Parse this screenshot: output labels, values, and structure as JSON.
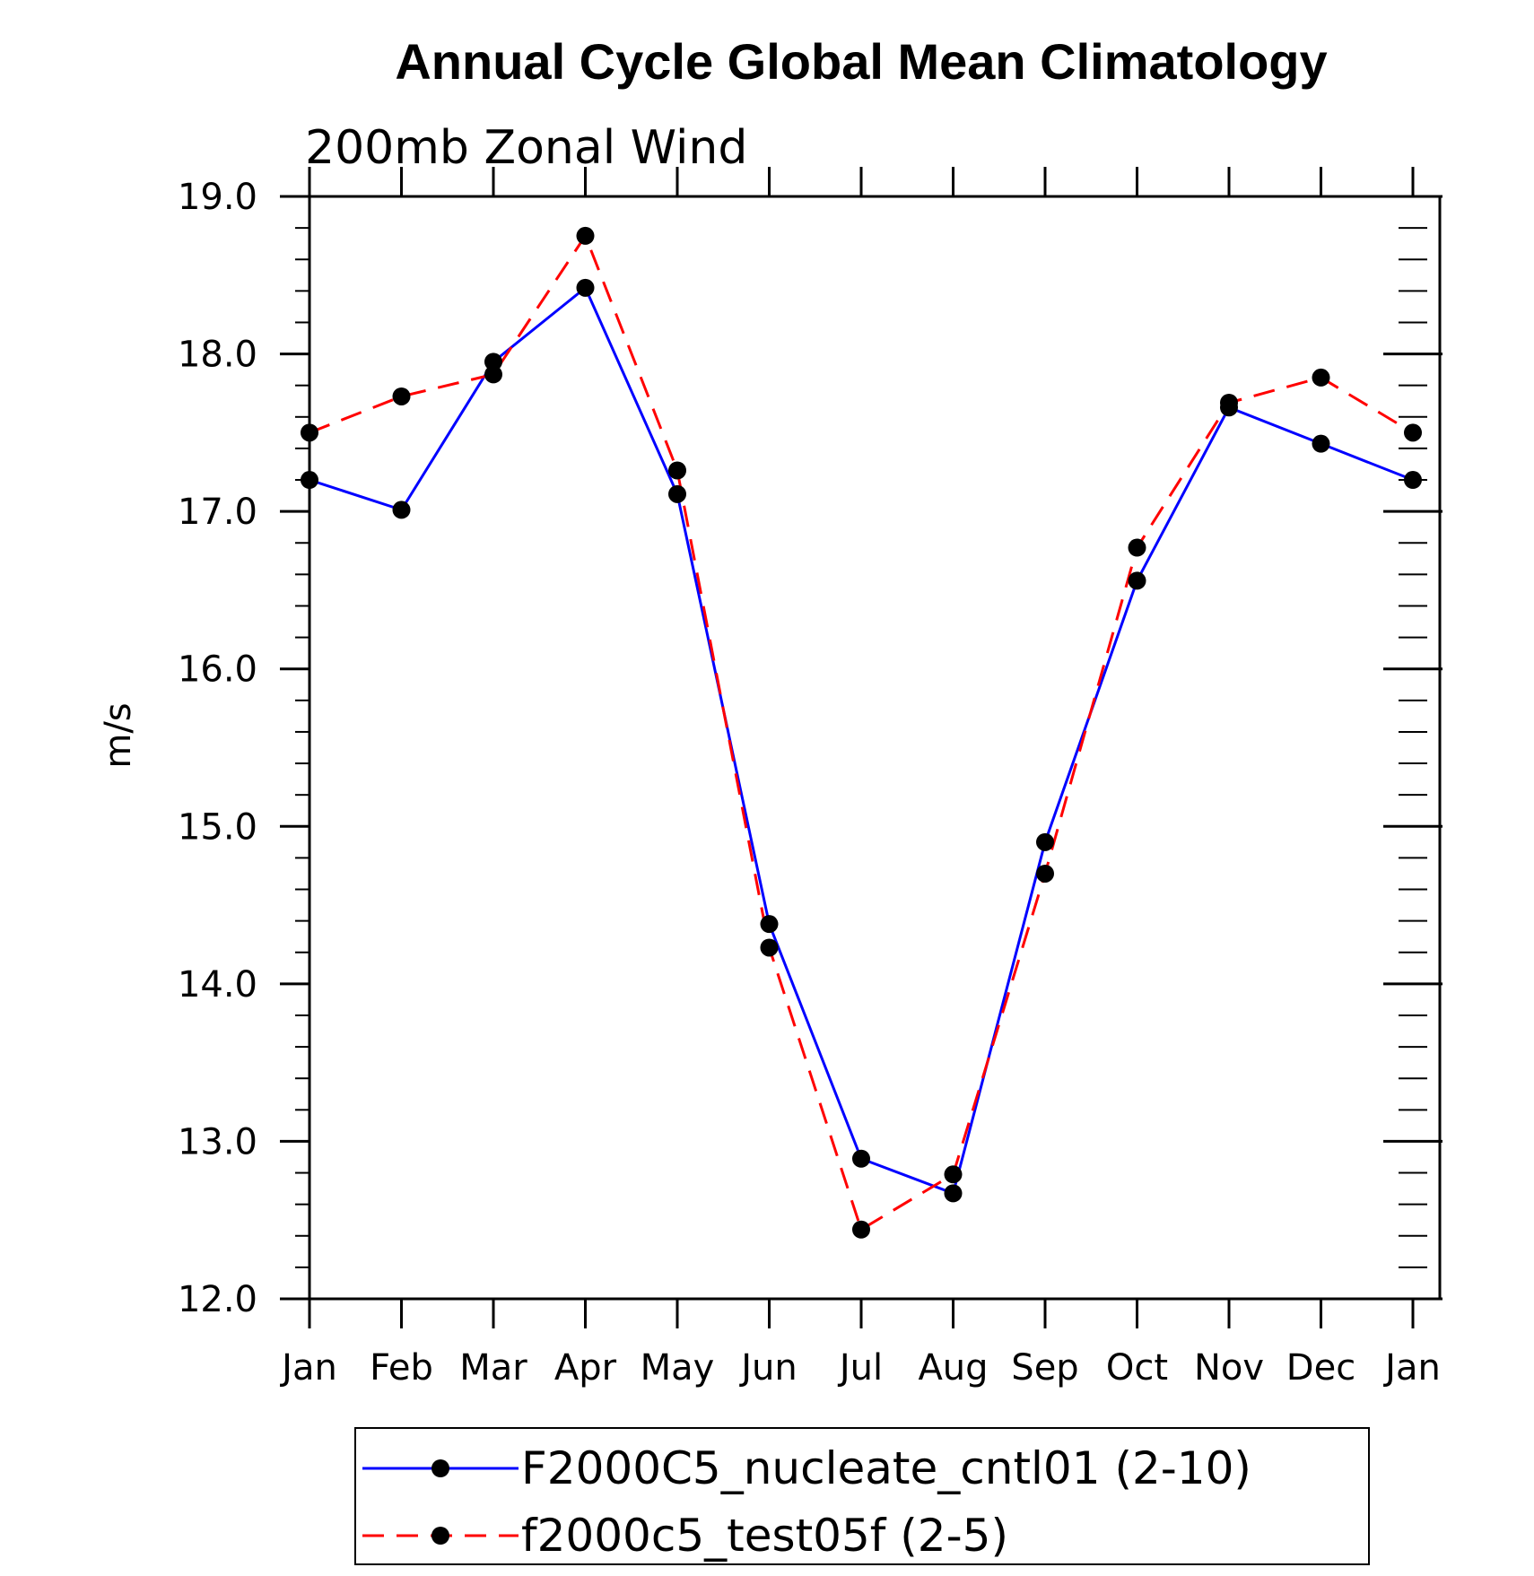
{
  "chart_data": {
    "type": "line",
    "title": "Annual Cycle Global Mean Climatology",
    "subtitle": "200mb Zonal Wind",
    "ylabel": "m/s",
    "xlabel": "",
    "categories": [
      "Jan",
      "Feb",
      "Mar",
      "Apr",
      "May",
      "Jun",
      "Jul",
      "Aug",
      "Sep",
      "Oct",
      "Nov",
      "Dec",
      "Jan"
    ],
    "ylim": [
      12.0,
      19.0
    ],
    "yticks": [
      "12.0",
      "13.0",
      "14.0",
      "15.0",
      "16.0",
      "17.0",
      "18.0",
      "19.0"
    ],
    "grid": false,
    "legend_position": "bottom",
    "series": [
      {
        "name": "F2000C5_nucleate_cntl01 (2-10)",
        "color": "#0000ff",
        "style": "solid",
        "values": [
          17.2,
          17.01,
          17.95,
          18.42,
          17.11,
          14.38,
          12.89,
          12.67,
          14.9,
          16.56,
          17.66,
          17.43,
          17.2
        ]
      },
      {
        "name": "f2000c5_test05f (2-5)",
        "color": "#ff0000",
        "style": "dashed",
        "values": [
          17.5,
          17.73,
          17.87,
          18.75,
          17.26,
          14.23,
          12.44,
          12.79,
          14.7,
          16.77,
          17.69,
          17.85,
          17.5
        ]
      }
    ]
  }
}
